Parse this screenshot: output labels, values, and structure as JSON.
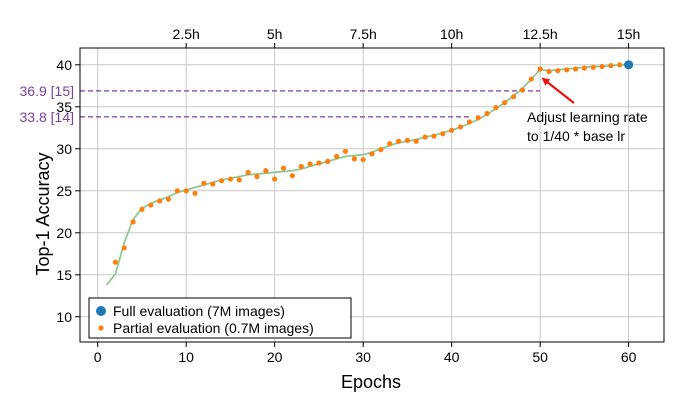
{
  "chart_data": {
    "type": "scatter",
    "xlabel": "Epochs",
    "ylabel": "Top-1 Accuracy",
    "xlim": [
      -2,
      64
    ],
    "ylim": [
      7,
      42
    ],
    "x_ticks": [
      0,
      10,
      20,
      30,
      40,
      50,
      60
    ],
    "y_ticks": [
      10,
      15,
      20,
      25,
      30,
      35,
      40
    ],
    "top_axis": {
      "ticks": [
        {
          "epoch": 10,
          "label": "2.5h"
        },
        {
          "epoch": 20,
          "label": "5h"
        },
        {
          "epoch": 30,
          "label": "7.5h"
        },
        {
          "epoch": 40,
          "label": "10h"
        },
        {
          "epoch": 50,
          "label": "12.5h"
        },
        {
          "epoch": 60,
          "label": "15h"
        }
      ]
    },
    "grid": true,
    "legend_position": "bottom-left",
    "colors": {
      "full": "#1f77b4",
      "partial": "#ff7f0e",
      "trend": "#90c990",
      "reference": "#7b3fa0",
      "annotation_arrow": "#ee1111"
    },
    "series": [
      {
        "name": "Full evaluation (7M images)",
        "marker": "circle-large",
        "x": [
          60
        ],
        "y": [
          40.0
        ]
      },
      {
        "name": "Partial evaluation (0.7M images)",
        "marker": "circle-small",
        "x": [
          2,
          3,
          4,
          5,
          6,
          7,
          8,
          9,
          10,
          11,
          12,
          13,
          14,
          15,
          16,
          17,
          18,
          19,
          20,
          21,
          22,
          23,
          24,
          25,
          26,
          27,
          28,
          29,
          30,
          31,
          32,
          33,
          34,
          35,
          36,
          37,
          38,
          39,
          40,
          41,
          42,
          43,
          44,
          45,
          46,
          47,
          48,
          49,
          50,
          51,
          52,
          53,
          54,
          55,
          56,
          57,
          58,
          59
        ],
        "y": [
          16.5,
          18.2,
          21.3,
          22.8,
          23.3,
          23.8,
          24.0,
          25.0,
          25.0,
          24.7,
          25.9,
          25.8,
          26.2,
          26.4,
          26.3,
          27.2,
          26.7,
          27.4,
          26.4,
          27.7,
          26.8,
          27.9,
          28.2,
          28.3,
          28.5,
          29.1,
          29.7,
          28.8,
          28.7,
          29.4,
          29.9,
          30.6,
          30.9,
          31.0,
          30.9,
          31.4,
          31.5,
          31.8,
          32.2,
          32.6,
          33.2,
          33.7,
          34.2,
          34.9,
          35.5,
          36.2,
          37.0,
          38.3,
          39.5,
          39.2,
          39.3,
          39.4,
          39.5,
          39.6,
          39.7,
          39.8,
          39.9,
          40.0
        ]
      },
      {
        "name": "",
        "style": "line",
        "x": [
          1,
          2,
          3,
          4,
          5,
          6,
          7,
          8,
          9,
          10,
          11,
          12,
          13,
          14,
          15,
          16,
          17,
          18,
          19,
          20,
          21,
          22,
          23,
          24,
          25,
          26,
          27,
          28,
          29,
          30,
          31,
          32,
          33,
          34,
          35,
          36,
          37,
          38,
          39,
          40,
          41,
          42,
          43,
          44,
          45,
          46,
          47,
          48,
          49,
          50,
          51,
          52,
          53,
          54,
          55,
          56,
          57,
          58,
          59,
          60
        ],
        "y": [
          13.8,
          15.1,
          18.8,
          21.6,
          22.9,
          23.5,
          23.9,
          24.3,
          24.8,
          25.1,
          25.4,
          25.7,
          26.0,
          26.3,
          26.5,
          26.7,
          26.9,
          27.0,
          27.1,
          27.2,
          27.3,
          27.4,
          27.6,
          27.9,
          28.2,
          28.5,
          28.8,
          29.1,
          29.2,
          29.3,
          29.6,
          30.0,
          30.4,
          30.7,
          30.9,
          31.1,
          31.4,
          31.6,
          31.9,
          32.2,
          32.6,
          33.0,
          33.5,
          34.1,
          34.8,
          35.5,
          36.3,
          37.2,
          38.3,
          39.4,
          39.3,
          39.4,
          39.5,
          39.6,
          39.7,
          39.8,
          39.8,
          39.9,
          40.0,
          40.0
        ]
      }
    ],
    "reference_lines": [
      {
        "label": "36.9 [15]",
        "y": 36.9,
        "x_end": 50
      },
      {
        "label": "33.8 [14]",
        "y": 33.8,
        "x_end": 42
      }
    ],
    "annotation": {
      "text_lines": [
        "Adjust learning rate",
        "to 1/40 * base lr"
      ],
      "points_to_epoch": 50
    }
  }
}
